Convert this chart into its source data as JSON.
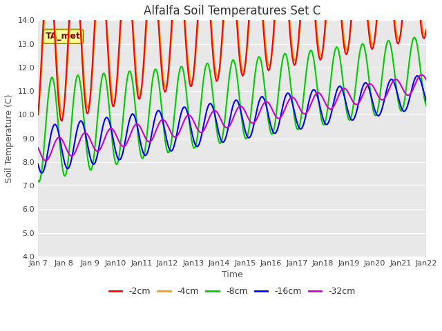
{
  "title": "Alfalfa Soil Temperatures Set C",
  "xlabel": "Time",
  "ylabel": "Soil Temperature (C)",
  "ylim": [
    4.0,
    14.0
  ],
  "yticks": [
    4.0,
    5.0,
    6.0,
    7.0,
    8.0,
    9.0,
    10.0,
    11.0,
    12.0,
    13.0,
    14.0
  ],
  "plot_bg": "#e8e8e8",
  "fig_bg": "#ffffff",
  "line_colors": {
    "2cm": "#ff0000",
    "4cm": "#ff9900",
    "8cm": "#00cc00",
    "16cm": "#0000ff",
    "32cm": "#cc00cc"
  },
  "legend_labels": [
    "-2cm",
    "-4cm",
    "-8cm",
    "-16cm",
    "-32cm"
  ],
  "annotation_text": "TA_met",
  "annotation_color": "#800000",
  "annotation_bg": "#ffff99",
  "annotation_edge": "#999900",
  "title_fontsize": 12,
  "axis_label_fontsize": 9,
  "tick_fontsize": 8,
  "grid_color": "#cccccc",
  "linewidth": 1.5
}
